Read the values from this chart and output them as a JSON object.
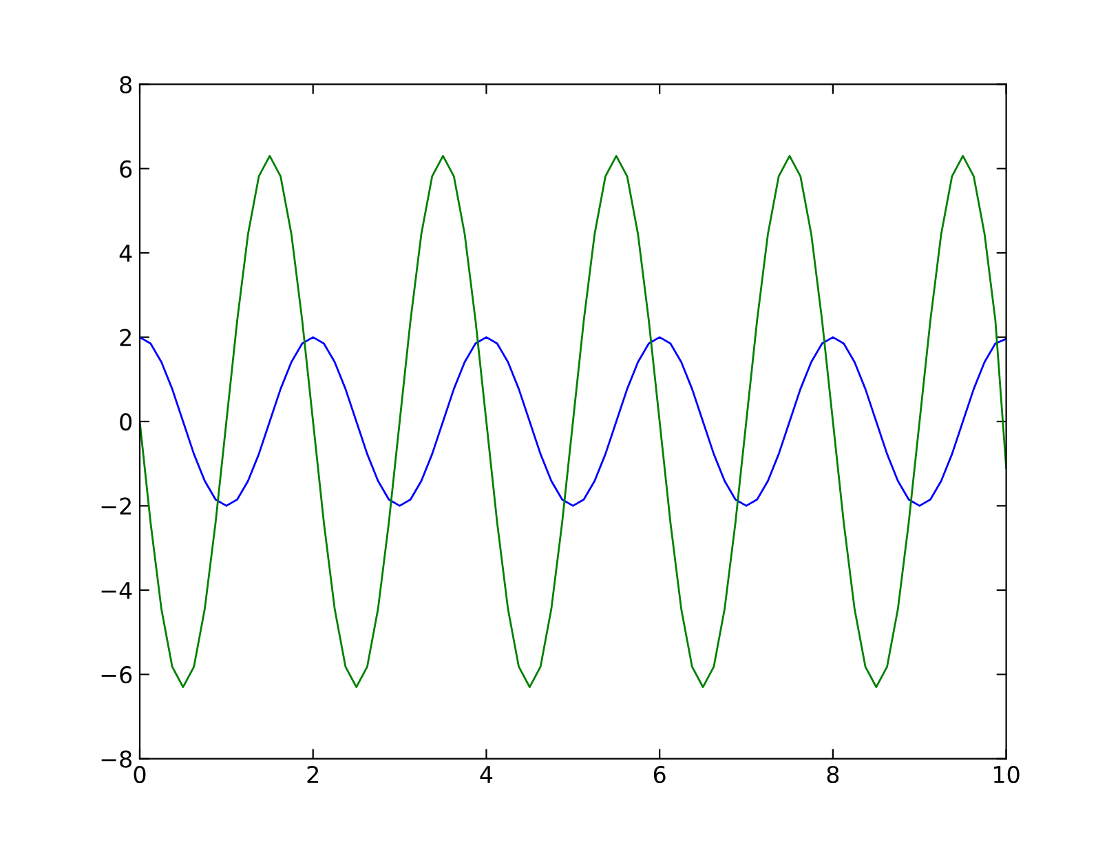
{
  "chart_data": {
    "type": "line",
    "x": [
      0,
      0.125,
      0.25,
      0.375,
      0.5,
      0.625,
      0.75,
      0.875,
      1,
      1.125,
      1.25,
      1.375,
      1.5,
      1.625,
      1.75,
      1.875,
      2,
      2.125,
      2.25,
      2.375,
      2.5,
      2.625,
      2.75,
      2.875,
      3,
      3.125,
      3.25,
      3.375,
      3.5,
      3.625,
      3.75,
      3.875,
      4,
      4.125,
      4.25,
      4.375,
      4.5,
      4.625,
      4.75,
      4.875,
      5,
      5.125,
      5.25,
      5.375,
      5.5,
      5.625,
      5.75,
      5.875,
      6,
      6.125,
      6.25,
      6.375,
      6.5,
      6.625,
      6.75,
      6.875,
      7,
      7.125,
      7.25,
      7.375,
      7.5,
      7.625,
      7.75,
      7.875,
      8,
      8.125,
      8.25,
      8.375,
      8.5,
      8.625,
      8.75,
      8.875,
      9,
      9.125,
      9.25,
      9.375,
      9.5,
      9.625,
      9.75,
      9.875,
      10
    ],
    "series": [
      {
        "color": "#0000ff",
        "values": [
          2,
          1.85,
          1.41,
          0.77,
          0,
          -0.77,
          -1.41,
          -1.85,
          -2,
          -1.85,
          -1.41,
          -0.77,
          0,
          0.77,
          1.41,
          1.85,
          2,
          1.85,
          1.41,
          0.77,
          0,
          -0.77,
          -1.41,
          -1.85,
          -2,
          -1.85,
          -1.41,
          -0.77,
          0,
          0.77,
          1.41,
          1.85,
          2,
          1.85,
          1.41,
          0.77,
          0,
          -0.77,
          -1.41,
          -1.85,
          -2,
          -1.85,
          -1.41,
          -0.77,
          0,
          0.77,
          1.41,
          1.85,
          2,
          1.85,
          1.41,
          0.77,
          0,
          -0.77,
          -1.41,
          -1.85,
          -2,
          -1.85,
          -1.41,
          -0.77,
          0,
          0.77,
          1.41,
          1.85,
          2,
          1.85,
          1.41,
          0.77,
          0,
          -0.77,
          -1.41,
          -1.85,
          -2,
          -1.85,
          -1.41,
          -0.77,
          0,
          0.77,
          1.41,
          1.85,
          1.96
        ]
      },
      {
        "color": "#008000",
        "values": [
          0,
          -2.4,
          -4.45,
          -5.82,
          -6.3,
          -5.82,
          -4.45,
          -2.4,
          0,
          2.4,
          4.45,
          5.82,
          6.3,
          5.82,
          4.45,
          2.4,
          0,
          -2.4,
          -4.45,
          -5.82,
          -6.3,
          -5.82,
          -4.45,
          -2.4,
          0,
          2.4,
          4.45,
          5.82,
          6.3,
          5.82,
          4.45,
          2.4,
          0,
          -2.4,
          -4.45,
          -5.82,
          -6.3,
          -5.82,
          -4.45,
          -2.4,
          0,
          2.4,
          4.45,
          5.82,
          6.3,
          5.82,
          4.45,
          2.4,
          0,
          -2.4,
          -4.45,
          -5.82,
          -6.3,
          -5.82,
          -4.45,
          -2.4,
          0,
          2.4,
          4.45,
          5.82,
          6.3,
          5.82,
          4.45,
          2.4,
          0,
          -2.4,
          -4.45,
          -5.82,
          -6.3,
          -5.82,
          -4.45,
          -2.4,
          0,
          2.4,
          4.45,
          5.82,
          6.3,
          5.82,
          4.45,
          2.4,
          -1.1
        ]
      }
    ],
    "xlim": [
      0,
      10
    ],
    "xticks": [
      0,
      2,
      4,
      6,
      8,
      10
    ],
    "ylim": [
      -8,
      8
    ],
    "yticks": [
      {
        "value": -8,
        "label": "−8"
      },
      {
        "value": -6,
        "label": "−6"
      },
      {
        "value": -4,
        "label": "−4"
      },
      {
        "value": -2,
        "label": "−2"
      },
      0,
      2,
      4,
      6,
      8
    ],
    "grid": false
  }
}
